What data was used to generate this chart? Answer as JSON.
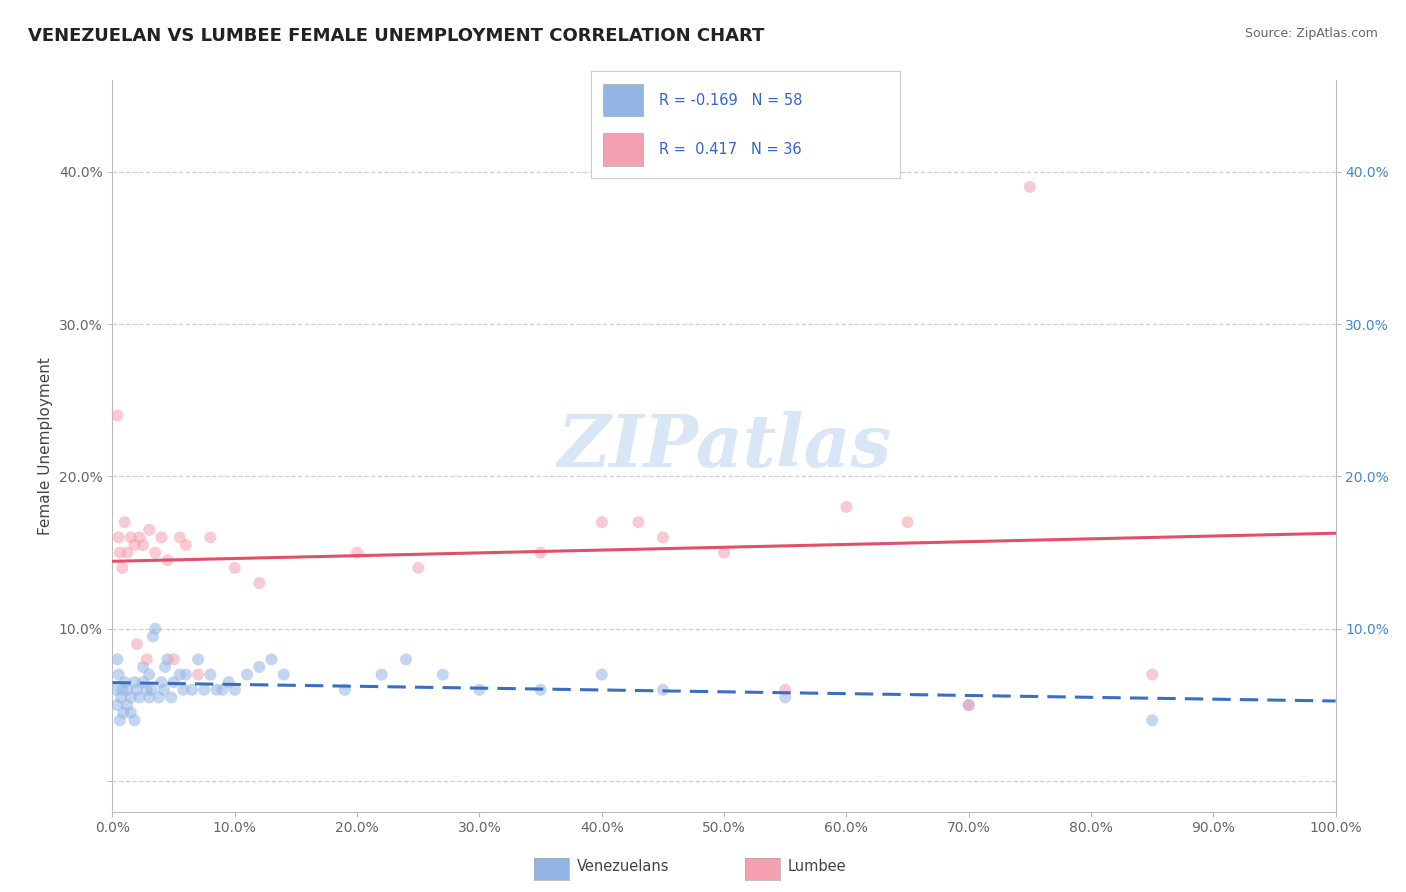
{
  "title": "VENEZUELAN VS LUMBEE FEMALE UNEMPLOYMENT CORRELATION CHART",
  "source": "Source: ZipAtlas.com",
  "ylabel": "Female Unemployment",
  "watermark": "ZIPatlas",
  "xlim": [
    0.0,
    1.0
  ],
  "ylim": [
    -0.02,
    0.46
  ],
  "xticks": [
    0.0,
    0.1,
    0.2,
    0.3,
    0.4,
    0.5,
    0.6,
    0.7,
    0.8,
    0.9,
    1.0
  ],
  "xticklabels": [
    "0.0%",
    "10.0%",
    "20.0%",
    "30.0%",
    "40.0%",
    "50.0%",
    "60.0%",
    "70.0%",
    "80.0%",
    "90.0%",
    "100.0%"
  ],
  "yticks_left": [
    0.0,
    0.1,
    0.2,
    0.3,
    0.4
  ],
  "yticklabels_left": [
    "",
    "10.0%",
    "20.0%",
    "30.0%",
    "40.0%"
  ],
  "yticks_right": [
    0.1,
    0.2,
    0.3,
    0.4
  ],
  "yticklabels_right": [
    "10.0%",
    "20.0%",
    "30.0%",
    "40.0%"
  ],
  "venezuelan_R": -0.169,
  "venezuelan_N": 58,
  "lumbee_R": 0.417,
  "lumbee_N": 36,
  "venezuelan_marker_color": "#92b4e3",
  "lumbee_marker_color": "#f4a0b0",
  "venezuelan_line_color": "#3a6fbf",
  "lumbee_line_color": "#e0506a",
  "venezuelan_scatter_x": [
    0.003,
    0.005,
    0.004,
    0.006,
    0.004,
    0.008,
    0.007,
    0.009,
    0.01,
    0.012,
    0.012,
    0.015,
    0.015,
    0.018,
    0.018,
    0.02,
    0.022,
    0.025,
    0.025,
    0.028,
    0.03,
    0.03,
    0.032,
    0.033,
    0.035,
    0.038,
    0.04,
    0.042,
    0.043,
    0.045,
    0.048,
    0.05,
    0.055,
    0.058,
    0.06,
    0.065,
    0.07,
    0.075,
    0.08,
    0.085,
    0.09,
    0.095,
    0.1,
    0.11,
    0.12,
    0.13,
    0.14,
    0.19,
    0.22,
    0.24,
    0.27,
    0.3,
    0.35,
    0.4,
    0.45,
    0.55,
    0.7,
    0.85
  ],
  "venezuelan_scatter_y": [
    0.06,
    0.07,
    0.05,
    0.04,
    0.08,
    0.06,
    0.055,
    0.045,
    0.065,
    0.05,
    0.06,
    0.055,
    0.045,
    0.065,
    0.04,
    0.06,
    0.055,
    0.065,
    0.075,
    0.06,
    0.055,
    0.07,
    0.06,
    0.095,
    0.1,
    0.055,
    0.065,
    0.06,
    0.075,
    0.08,
    0.055,
    0.065,
    0.07,
    0.06,
    0.07,
    0.06,
    0.08,
    0.06,
    0.07,
    0.06,
    0.06,
    0.065,
    0.06,
    0.07,
    0.075,
    0.08,
    0.07,
    0.06,
    0.07,
    0.08,
    0.07,
    0.06,
    0.06,
    0.07,
    0.06,
    0.055,
    0.05,
    0.04
  ],
  "lumbee_scatter_x": [
    0.004,
    0.005,
    0.006,
    0.008,
    0.01,
    0.012,
    0.015,
    0.018,
    0.02,
    0.022,
    0.025,
    0.028,
    0.03,
    0.035,
    0.04,
    0.045,
    0.05,
    0.055,
    0.06,
    0.07,
    0.08,
    0.1,
    0.12,
    0.2,
    0.25,
    0.35,
    0.4,
    0.43,
    0.45,
    0.5,
    0.55,
    0.6,
    0.65,
    0.7,
    0.75,
    0.85
  ],
  "lumbee_scatter_y": [
    0.24,
    0.16,
    0.15,
    0.14,
    0.17,
    0.15,
    0.16,
    0.155,
    0.09,
    0.16,
    0.155,
    0.08,
    0.165,
    0.15,
    0.16,
    0.145,
    0.08,
    0.16,
    0.155,
    0.07,
    0.16,
    0.14,
    0.13,
    0.15,
    0.14,
    0.15,
    0.17,
    0.17,
    0.16,
    0.15,
    0.06,
    0.18,
    0.17,
    0.05,
    0.39,
    0.07
  ],
  "background_color": "#ffffff",
  "grid_color": "#d0d0d0",
  "title_fontsize": 13,
  "axis_label_fontsize": 11,
  "tick_fontsize": 10,
  "watermark_fontsize": 52,
  "watermark_color": "#d8e6f5",
  "scatter_size": 75,
  "scatter_alpha": 0.55,
  "line_width": 2.2
}
